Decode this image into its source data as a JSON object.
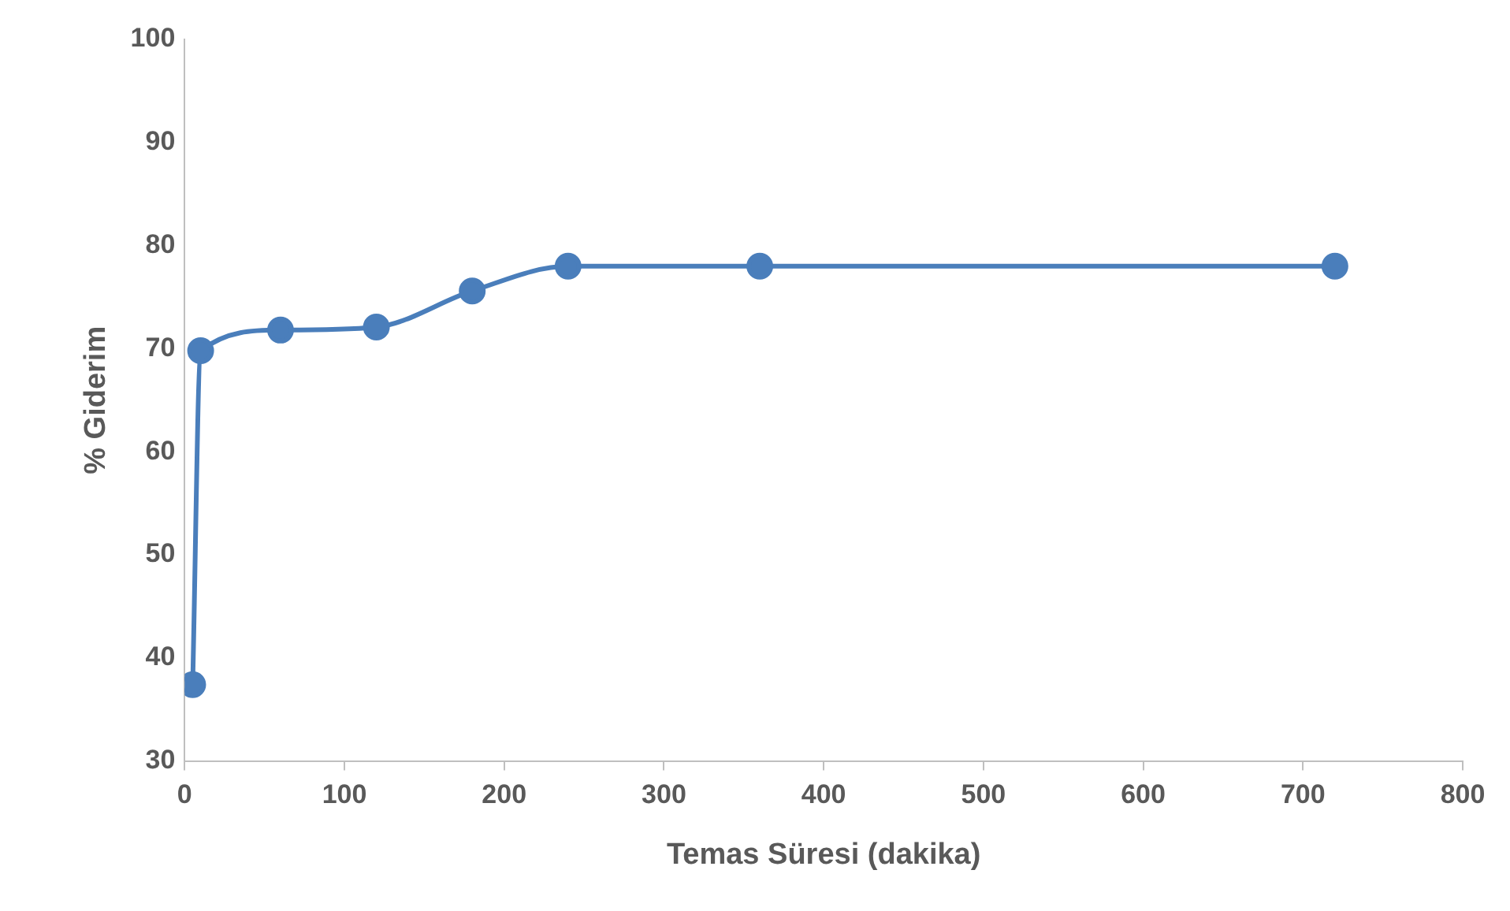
{
  "chart_data": {
    "type": "scatter",
    "xlabel": "Temas Süresi (dakika)",
    "ylabel": "% Giderim",
    "x": [
      5,
      10,
      60,
      120,
      180,
      240,
      360,
      720
    ],
    "series": [
      {
        "type": "line",
        "color": "#4a7ebb",
        "values": [
          37.4,
          69.8,
          71.8,
          72.1,
          75.6,
          78.0,
          78.0,
          78.0
        ]
      }
    ],
    "xlim": [
      0,
      800
    ],
    "xticks": [
      0,
      100,
      200,
      300,
      400,
      500,
      600,
      700,
      800
    ],
    "ylim": [
      30,
      100
    ],
    "yticks": [
      30,
      40,
      50,
      60,
      70,
      80,
      90,
      100
    ],
    "grid": false,
    "legend": false,
    "marker": "circle",
    "line_style": "solid"
  }
}
